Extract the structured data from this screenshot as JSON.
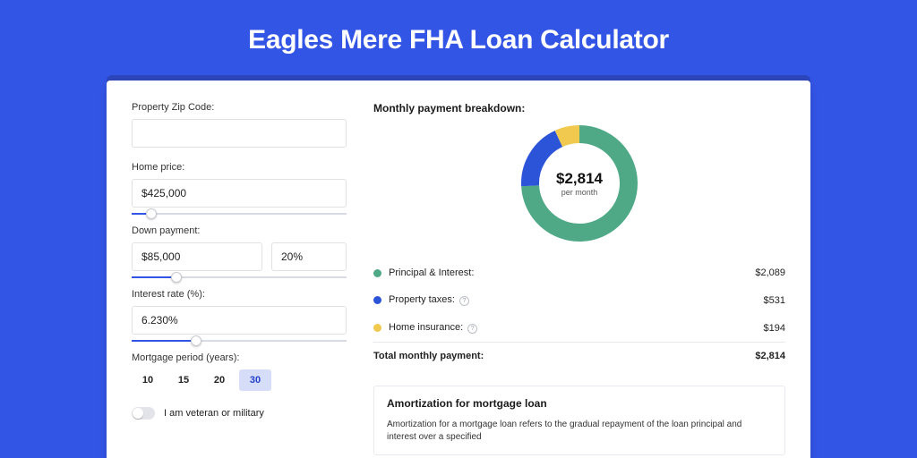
{
  "page": {
    "title": "Eagles Mere FHA Loan Calculator",
    "bg_color": "#3355e6",
    "header_shadow_color": "#2d46bc",
    "card_bg": "#ffffff"
  },
  "form": {
    "zip": {
      "label": "Property Zip Code:",
      "value": ""
    },
    "home_price": {
      "label": "Home price:",
      "value": "$425,000",
      "slider_pct": 9
    },
    "down_payment": {
      "label": "Down payment:",
      "amount": "$85,000",
      "pct": "20%",
      "slider_pct": 21
    },
    "interest_rate": {
      "label": "Interest rate (%):",
      "value": "6.230%",
      "slider_pct": 30
    },
    "period": {
      "label": "Mortgage period (years):",
      "options": [
        "10",
        "15",
        "20",
        "30"
      ],
      "active_index": 3
    },
    "veteran": {
      "label": "I am veteran or military",
      "on": false
    }
  },
  "breakdown": {
    "heading": "Monthly payment breakdown:",
    "donut": {
      "center_amount": "$2,814",
      "center_label": "per month",
      "segments": [
        {
          "color": "#4fa986",
          "pct": 74.2
        },
        {
          "color": "#2c54d8",
          "pct": 18.9
        },
        {
          "color": "#f0c94e",
          "pct": 6.9
        }
      ],
      "size": 130,
      "thickness": 20
    },
    "items": [
      {
        "dot": "#4fa986",
        "label": "Principal & Interest:",
        "value": "$2,089",
        "info": false
      },
      {
        "dot": "#2c54d8",
        "label": "Property taxes:",
        "value": "$531",
        "info": true
      },
      {
        "dot": "#f0c94e",
        "label": "Home insurance:",
        "value": "$194",
        "info": true
      }
    ],
    "total": {
      "label": "Total monthly payment:",
      "value": "$2,814"
    }
  },
  "amortization": {
    "title": "Amortization for mortgage loan",
    "text": "Amortization for a mortgage loan refers to the gradual repayment of the loan principal and interest over a specified"
  }
}
